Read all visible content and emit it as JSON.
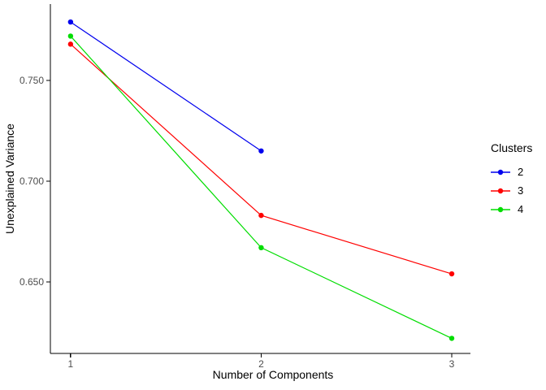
{
  "chart_data": {
    "type": "line",
    "title": "",
    "xlabel": "Number of Components",
    "ylabel": "Unexplained Variance",
    "xlim": [
      0.894,
      3.098
    ],
    "ylim": [
      0.6145,
      0.7879
    ],
    "x_ticks": [
      1,
      2,
      3
    ],
    "x_tick_labels": [
      "1",
      "2",
      "3"
    ],
    "y_ticks": [
      0.65,
      0.7,
      0.75
    ],
    "y_tick_labels": [
      "0.650",
      "0.700",
      "0.750"
    ],
    "grid": false,
    "legend": {
      "title": "Clusters",
      "position": "right"
    },
    "series": [
      {
        "name": "2",
        "color": "#0000EE",
        "x": [
          1,
          2
        ],
        "y": [
          0.779,
          0.715
        ]
      },
      {
        "name": "3",
        "color": "#FF0000",
        "x": [
          1,
          2,
          3
        ],
        "y": [
          0.768,
          0.683,
          0.654
        ]
      },
      {
        "name": "4",
        "color": "#00DD00",
        "x": [
          1,
          2,
          3
        ],
        "y": [
          0.772,
          0.667,
          0.622
        ]
      }
    ]
  },
  "colors": {
    "axis": "#000000",
    "tick_label": "#4D4D4D",
    "axis_title": "#000000",
    "background": "#FFFFFF"
  }
}
